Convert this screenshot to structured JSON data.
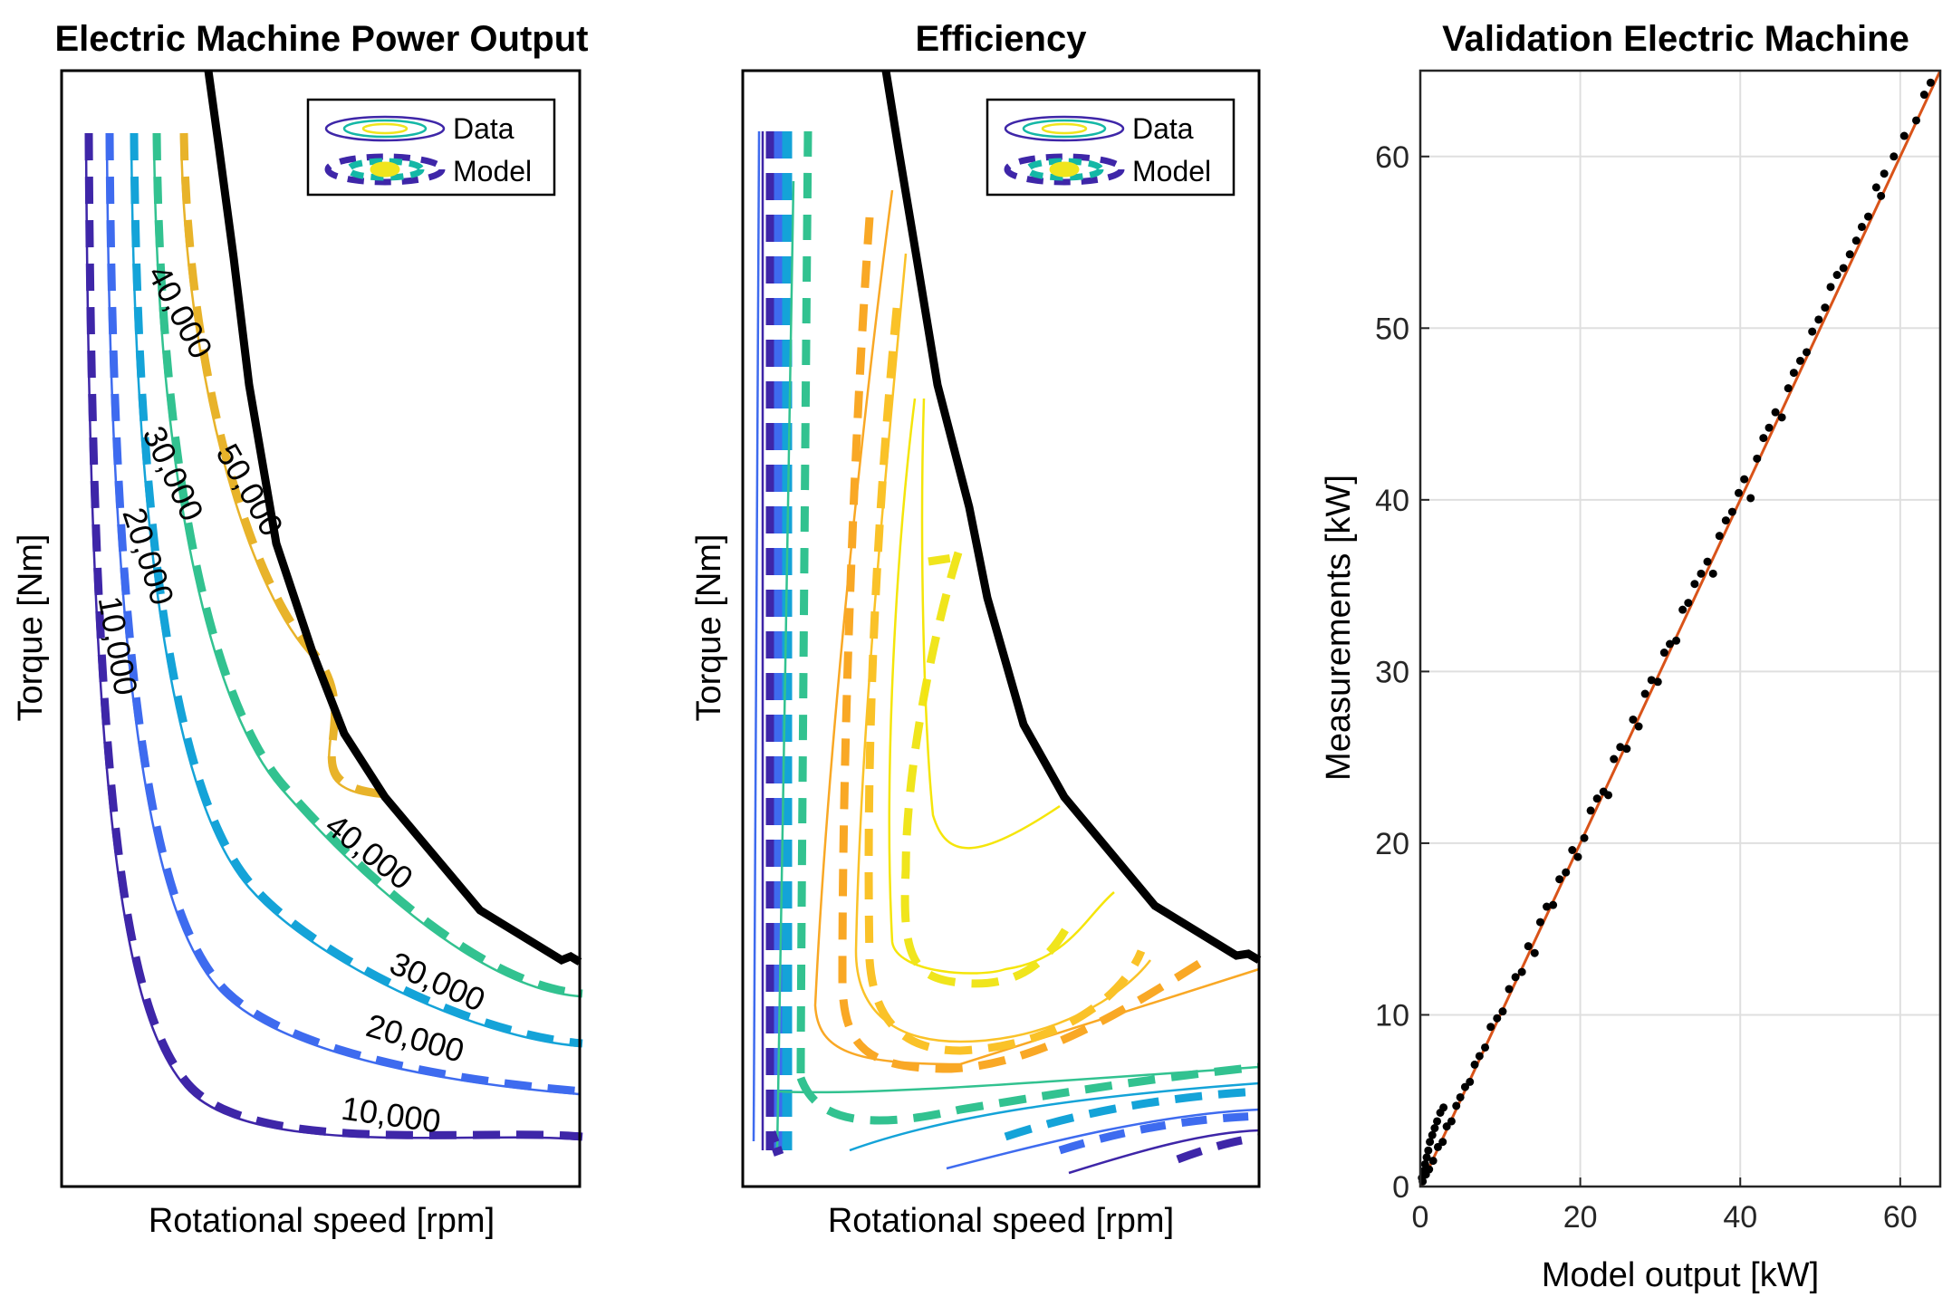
{
  "chart_data": [
    {
      "type": "contour",
      "title": "Electric Machine Power Output",
      "xlabel": "Rotational speed [rpm]",
      "ylabel": "Torque [Nm]",
      "legend": {
        "position": "top-right",
        "entries": [
          "Data",
          "Model"
        ]
      },
      "contour_levels": [
        {
          "label": "10,000",
          "value": 10000,
          "color": "#3e26a8"
        },
        {
          "label": "20,000",
          "value": 20000,
          "color": "#3e6bef"
        },
        {
          "label": "30,000",
          "value": 30000,
          "color": "#14a3d8"
        },
        {
          "label": "40,000",
          "value": 40000,
          "color": "#32c290"
        },
        {
          "label": "50,000",
          "value": 50000,
          "color": "#e8b32a"
        }
      ],
      "extra_labels": [
        "40,000"
      ],
      "envelope_color": "#000000",
      "styles": {
        "data": "solid",
        "model": "dashed"
      }
    },
    {
      "type": "contour",
      "title": "Efficiency",
      "xlabel": "Rotational speed [rpm]",
      "ylabel": "Torque [Nm]",
      "legend": {
        "position": "top-right",
        "entries": [
          "Data",
          "Model"
        ]
      },
      "envelope_color": "#000000",
      "styles": {
        "data": "solid",
        "model": "dashed"
      }
    },
    {
      "type": "scatter",
      "title": "Validation Electric Machine",
      "xlabel": "Model output [kW]",
      "ylabel": "Measurements [kW]",
      "xlim": [
        0,
        65
      ],
      "ylim": [
        0,
        65
      ],
      "xticks": [
        "0",
        "20",
        "40",
        "60"
      ],
      "yticks": [
        "0",
        "10",
        "20",
        "30",
        "40",
        "50",
        "60"
      ],
      "grid": true,
      "reference_line": {
        "from": [
          0,
          0
        ],
        "to": [
          65,
          65
        ],
        "color": "#d95319"
      },
      "point_color": "#000000",
      "points": [
        [
          0.2,
          0.5
        ],
        [
          0.4,
          0.9
        ],
        [
          0.6,
          1.3
        ],
        [
          0.8,
          1.7
        ],
        [
          1.0,
          2.1
        ],
        [
          1.2,
          2.6
        ],
        [
          1.5,
          3.0
        ],
        [
          1.8,
          3.4
        ],
        [
          2.1,
          3.8
        ],
        [
          2.5,
          4.3
        ],
        [
          2.9,
          4.6
        ],
        [
          0.3,
          0.3
        ],
        [
          0.7,
          0.7
        ],
        [
          1.1,
          1.0
        ],
        [
          1.6,
          1.5
        ],
        [
          2.2,
          2.3
        ],
        [
          2.8,
          2.6
        ],
        [
          3.3,
          3.5
        ],
        [
          3.9,
          3.8
        ],
        [
          4.5,
          4.7
        ],
        [
          5.0,
          5.2
        ],
        [
          5.6,
          5.8
        ],
        [
          6.2,
          6.1
        ],
        [
          6.8,
          7.1
        ],
        [
          7.4,
          7.6
        ],
        [
          8.1,
          8.1
        ],
        [
          8.8,
          9.3
        ],
        [
          9.6,
          9.8
        ],
        [
          10.3,
          10.2
        ],
        [
          11.1,
          11.5
        ],
        [
          11.9,
          12.2
        ],
        [
          12.7,
          12.5
        ],
        [
          13.5,
          14.0
        ],
        [
          14.3,
          13.6
        ],
        [
          15.0,
          15.4
        ],
        [
          15.8,
          16.3
        ],
        [
          16.6,
          16.4
        ],
        [
          17.4,
          17.9
        ],
        [
          18.2,
          18.3
        ],
        [
          19.0,
          19.6
        ],
        [
          19.7,
          19.2
        ],
        [
          20.5,
          20.3
        ],
        [
          21.3,
          21.9
        ],
        [
          22.1,
          22.6
        ],
        [
          22.9,
          23.0
        ],
        [
          23.5,
          22.8
        ],
        [
          24.2,
          24.9
        ],
        [
          25.0,
          25.6
        ],
        [
          25.8,
          25.5
        ],
        [
          26.6,
          27.2
        ],
        [
          27.3,
          26.8
        ],
        [
          28.1,
          28.7
        ],
        [
          28.9,
          29.5
        ],
        [
          29.7,
          29.4
        ],
        [
          30.5,
          31.1
        ],
        [
          31.2,
          31.6
        ],
        [
          32.0,
          31.8
        ],
        [
          32.8,
          33.6
        ],
        [
          33.5,
          34.0
        ],
        [
          34.3,
          35.1
        ],
        [
          35.1,
          35.7
        ],
        [
          35.9,
          36.4
        ],
        [
          36.6,
          35.7
        ],
        [
          37.4,
          37.9
        ],
        [
          38.2,
          38.8
        ],
        [
          39.0,
          39.3
        ],
        [
          39.8,
          40.4
        ],
        [
          40.5,
          41.2
        ],
        [
          41.3,
          40.1
        ],
        [
          42.1,
          42.4
        ],
        [
          42.9,
          43.6
        ],
        [
          43.6,
          44.2
        ],
        [
          44.4,
          45.1
        ],
        [
          45.2,
          44.8
        ],
        [
          46.0,
          46.5
        ],
        [
          46.7,
          47.4
        ],
        [
          47.5,
          48.1
        ],
        [
          48.3,
          48.6
        ],
        [
          49.0,
          49.8
        ],
        [
          49.8,
          50.5
        ],
        [
          50.6,
          51.2
        ],
        [
          51.3,
          52.4
        ],
        [
          52.1,
          53.1
        ],
        [
          52.9,
          53.5
        ],
        [
          53.7,
          54.3
        ],
        [
          54.5,
          55.1
        ],
        [
          55.2,
          55.9
        ],
        [
          56.0,
          56.5
        ],
        [
          57.0,
          58.2
        ],
        [
          57.6,
          57.7
        ],
        [
          58.0,
          59.0
        ],
        [
          59.2,
          60.0
        ],
        [
          60.5,
          61.2
        ],
        [
          62.0,
          62.1
        ],
        [
          63.0,
          63.6
        ],
        [
          63.8,
          64.3
        ]
      ]
    }
  ]
}
